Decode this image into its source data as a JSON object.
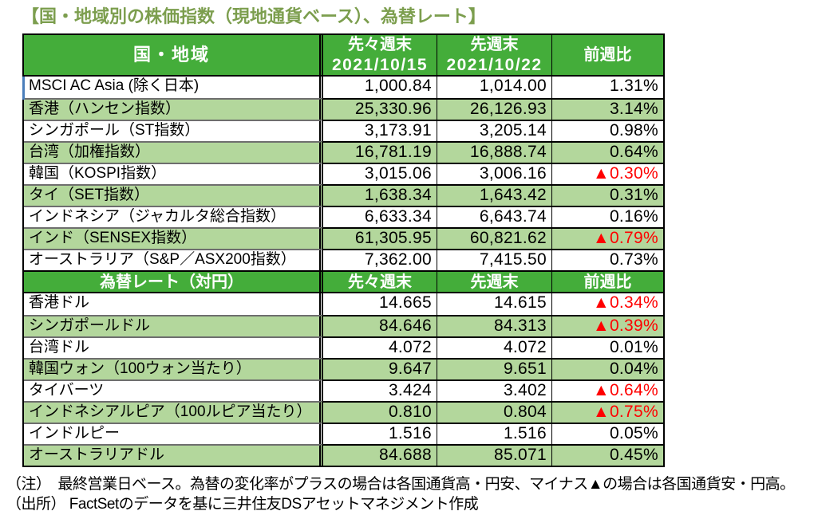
{
  "title": "【国・地域別の株価指数（現地通貨ベース）、為替レート】",
  "colors": {
    "header_green": "#44AD3A",
    "row_green": "#B3D79C",
    "title_green": "#7C9E4E",
    "negative_red": "#FF0000",
    "grid_gray": "#6E6E6E",
    "accent_blue": "#4A7EBB"
  },
  "stock_table": {
    "headers": {
      "country": "国・地域",
      "prev2_label": "先々週末",
      "prev2_date": "2021/10/15",
      "prev_label": "先週末",
      "prev_date": "2021/10/22",
      "wow": "前週比"
    },
    "rows": [
      {
        "name": "MSCI AC Asia (除く日本)",
        "prev2": "1,000.84",
        "prev": "1,014.00",
        "wow": "1.31%"
      },
      {
        "name": "香港（ハンセン指数）",
        "prev2": "25,330.96",
        "prev": "26,126.93",
        "wow": "3.14%"
      },
      {
        "name": "シンガポール（ST指数）",
        "prev2": "3,173.91",
        "prev": "3,205.14",
        "wow": "0.98%"
      },
      {
        "name": "台湾（加権指数）",
        "prev2": "16,781.19",
        "prev": "16,888.74",
        "wow": "0.64%"
      },
      {
        "name": "韓国（KOSPI指数）",
        "prev2": "3,015.06",
        "prev": "3,006.16",
        "wow": "▲0.30%"
      },
      {
        "name": "タイ（SET指数）",
        "prev2": "1,638.34",
        "prev": "1,643.42",
        "wow": "0.31%"
      },
      {
        "name": "インドネシア（ジャカルタ総合指数）",
        "prev2": "6,633.34",
        "prev": "6,643.74",
        "wow": "0.16%"
      },
      {
        "name": "インド（SENSEX指数）",
        "prev2": "61,305.95",
        "prev": "60,821.62",
        "wow": "▲0.79%"
      },
      {
        "name": "オーストラリア（S&P／ASX200指数）",
        "prev2": "7,362.00",
        "prev": "7,415.50",
        "wow": "0.73%"
      }
    ]
  },
  "fx_table": {
    "headers": {
      "label": "為替レート（対円）",
      "prev2": "先々週末",
      "prev": "先週末",
      "wow": "前週比"
    },
    "rows": [
      {
        "name": "香港ドル",
        "prev2": "14.665",
        "prev": "14.615",
        "wow": "▲0.34%"
      },
      {
        "name": "シンガポールドル",
        "prev2": "84.646",
        "prev": "84.313",
        "wow": "▲0.39%"
      },
      {
        "name": "台湾ドル",
        "prev2": "4.072",
        "prev": "4.072",
        "wow": "0.01%"
      },
      {
        "name": "韓国ウォン（100ウォン当たり）",
        "prev2": "9.647",
        "prev": "9.651",
        "wow": "0.04%"
      },
      {
        "name": "タイバーツ",
        "prev2": "3.424",
        "prev": "3.402",
        "wow": "▲0.64%"
      },
      {
        "name": "インドネシアルピア（100ルピア当たり）",
        "prev2": "0.810",
        "prev": "0.804",
        "wow": "▲0.75%"
      },
      {
        "name": "インドルピー",
        "prev2": "1.516",
        "prev": "1.516",
        "wow": "0.05%"
      },
      {
        "name": "オーストラリアドル",
        "prev2": "84.688",
        "prev": "85.071",
        "wow": "0.45%"
      }
    ]
  },
  "notes": [
    "（注）　最終営業日ベース。為替の変化率がプラスの場合は各国通貨高・円安、マイナス▲の場合は各国通貨安・円高。",
    "（出所） FactSetのデータを基に三井住友DSアセットマネジメント作成"
  ]
}
